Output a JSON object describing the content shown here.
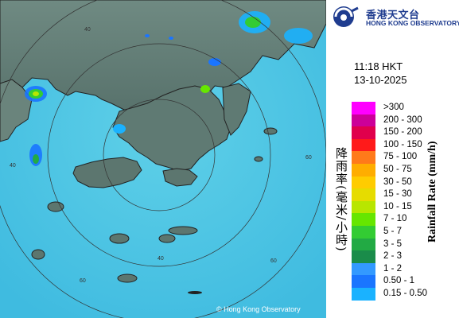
{
  "map": {
    "ring_labels": [
      "40",
      "40",
      "40",
      "60",
      "60",
      "60"
    ],
    "copyright": "© Hong Kong Observatory"
  },
  "logo": {
    "cn": "香港天文台",
    "en": "HONG KONG OBSERVATORY"
  },
  "time": "11:18 HKT",
  "date": "13-10-2025",
  "legend": {
    "title_cn": "降雨率(毫米/小時)",
    "title_en": "Rainfall Rate (mm/h)",
    "items": [
      {
        "label": ">300",
        "color": "#ff00ff"
      },
      {
        "label": "200 - 300",
        "color": "#cc0099"
      },
      {
        "label": "150 - 200",
        "color": "#e0004c"
      },
      {
        "label": "100 - 150",
        "color": "#ff1a1a"
      },
      {
        "label": "75 - 100",
        "color": "#ff7a1a"
      },
      {
        "label": "50 - 75",
        "color": "#ffad00"
      },
      {
        "label": "30 - 50",
        "color": "#ffcc00"
      },
      {
        "label": "15 - 30",
        "color": "#e6dc00"
      },
      {
        "label": "10 - 15",
        "color": "#b8e600"
      },
      {
        "label": "7 - 10",
        "color": "#66e600"
      },
      {
        "label": "5 - 7",
        "color": "#33cc33"
      },
      {
        "label": "3 - 5",
        "color": "#22aa44"
      },
      {
        "label": "2 - 3",
        "color": "#1a8c4a"
      },
      {
        "label": "1 - 2",
        "color": "#3399ff"
      },
      {
        "label": "0.50 - 1",
        "color": "#1a75ff"
      },
      {
        "label": "0.15 - 0.50",
        "color": "#1ab2ff"
      }
    ]
  }
}
